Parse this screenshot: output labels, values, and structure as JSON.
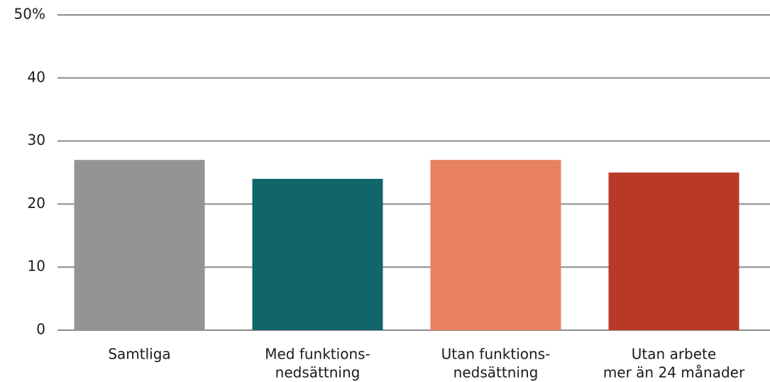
{
  "chart_data": {
    "type": "bar",
    "categories": [
      [
        "Samtliga"
      ],
      [
        "Med funktions-",
        "nedsättning"
      ],
      [
        "Utan funktions-",
        "nedsättning"
      ],
      [
        "Utan arbete",
        "mer än 24 månader"
      ]
    ],
    "values": [
      27,
      24,
      27,
      25
    ],
    "colors": [
      "#949592",
      "#10666b",
      "#e8825f",
      "#b83a26"
    ],
    "ylim": [
      0,
      50
    ],
    "yticks": [
      0,
      10,
      20,
      30,
      40,
      {
        "value": 50,
        "label": "50%"
      }
    ],
    "grid": true
  }
}
